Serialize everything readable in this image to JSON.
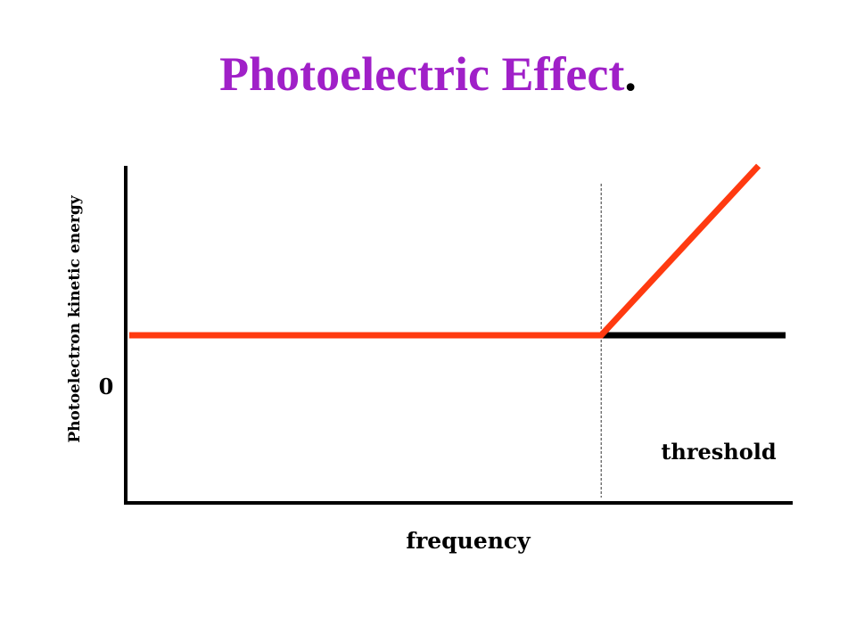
{
  "title": {
    "text": "Photoelectric Effect",
    "suffix": "."
  },
  "chart_data": {
    "type": "line",
    "title": "Photoelectric Effect.",
    "xlabel": "frequency",
    "ylabel": "Photoelectron kinetic energy",
    "ytick_labels": [
      "0"
    ],
    "annotations": [
      "threshold"
    ],
    "threshold_x": 0.72,
    "xlim": [
      0,
      1
    ],
    "ylim": [
      -1,
      1
    ],
    "grid": false,
    "legend": "none",
    "zero_line_color": "#000000",
    "series": [
      {
        "color": "#ff3a10",
        "x": [
          0,
          0.72,
          0.96
        ],
        "y": [
          0,
          0,
          1
        ]
      }
    ]
  }
}
